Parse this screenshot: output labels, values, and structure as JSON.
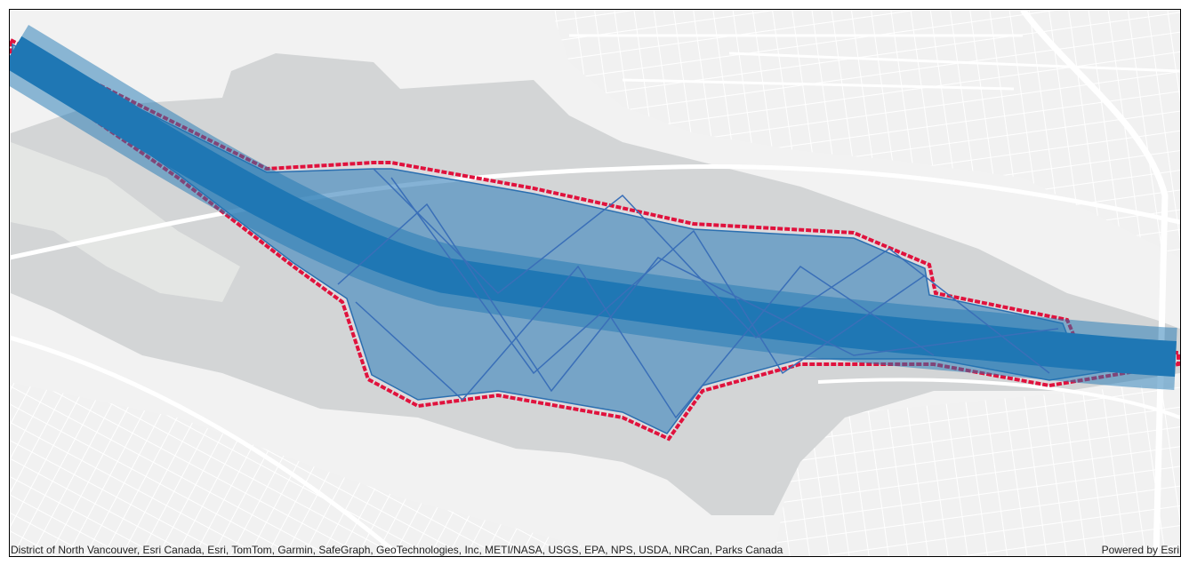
{
  "attribution": "District of North Vancouver, Esri Canada, Esri, TomTom, Garmin, SafeGraph, GeoTechnologies, Inc, METI/NASA, USGS, EPA, NPS, USDA, NRCan, Parks Canada",
  "powered_by": "Powered by Esri"
}
